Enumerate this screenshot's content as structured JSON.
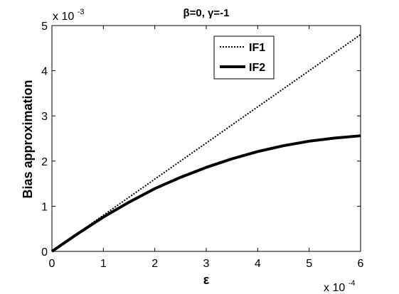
{
  "chart_data": {
    "type": "line",
    "title": "β=0, γ=-1",
    "xlabel": "ε",
    "ylabel": "Bias approximation",
    "x_multiplier": "x 10",
    "x_exponent": "-4",
    "y_multiplier": "x 10",
    "y_exponent": "-3",
    "xlim": [
      0,
      6
    ],
    "ylim": [
      0,
      5
    ],
    "xticks": [
      "0",
      "1",
      "2",
      "3",
      "4",
      "5",
      "6"
    ],
    "yticks": [
      "0",
      "1",
      "2",
      "3",
      "4",
      "5"
    ],
    "grid": false,
    "legend_position": "top-right",
    "x": [
      0,
      0.5,
      1,
      1.5,
      2,
      2.5,
      3,
      3.5,
      4,
      4.5,
      5,
      5.5,
      6
    ],
    "series": [
      {
        "name": "IF1",
        "style": "dotted",
        "color": "#000000",
        "values": [
          0,
          0.4,
          0.8,
          1.2,
          1.6,
          2.0,
          2.4,
          2.8,
          3.2,
          3.6,
          4.0,
          4.4,
          4.8
        ]
      },
      {
        "name": "IF2",
        "style": "solid",
        "color": "#000000",
        "values": [
          0,
          0.39,
          0.76,
          1.09,
          1.39,
          1.64,
          1.86,
          2.05,
          2.21,
          2.34,
          2.44,
          2.51,
          2.56
        ]
      }
    ]
  }
}
